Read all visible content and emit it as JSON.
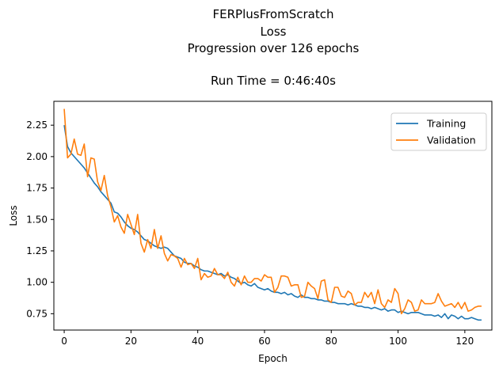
{
  "chart_data": {
    "type": "line",
    "title_lines": [
      "FERPlusFromScratch",
      "Loss",
      "Progression over 126 epochs",
      "",
      "Run Time = 0:46:40s"
    ],
    "xlabel": "Epoch",
    "ylabel": "Loss",
    "xlim": [
      -3.1,
      128.1
    ],
    "ylim": [
      0.62,
      2.44
    ],
    "xticks": [
      0,
      20,
      40,
      60,
      80,
      100,
      120
    ],
    "yticks": [
      0.75,
      1.0,
      1.25,
      1.5,
      1.75,
      2.0,
      2.25
    ],
    "ytick_labels": [
      "0.75",
      "1.00",
      "1.25",
      "1.50",
      "1.75",
      "2.00",
      "2.25"
    ],
    "legend_position": "top-right",
    "series": [
      {
        "name": "Training",
        "color": "#1f77b4",
        "values": [
          2.25,
          2.08,
          2.03,
          2.0,
          1.97,
          1.94,
          1.91,
          1.87,
          1.83,
          1.79,
          1.76,
          1.72,
          1.69,
          1.66,
          1.63,
          1.56,
          1.55,
          1.52,
          1.48,
          1.45,
          1.43,
          1.42,
          1.4,
          1.37,
          1.34,
          1.33,
          1.31,
          1.29,
          1.28,
          1.27,
          1.28,
          1.27,
          1.24,
          1.21,
          1.2,
          1.19,
          1.16,
          1.15,
          1.15,
          1.13,
          1.12,
          1.1,
          1.09,
          1.09,
          1.08,
          1.07,
          1.06,
          1.07,
          1.05,
          1.06,
          1.04,
          1.03,
          1.01,
          0.99,
          1.0,
          0.98,
          0.97,
          0.99,
          0.96,
          0.95,
          0.94,
          0.95,
          0.93,
          0.92,
          0.92,
          0.91,
          0.92,
          0.9,
          0.91,
          0.89,
          0.88,
          0.9,
          0.88,
          0.88,
          0.87,
          0.87,
          0.86,
          0.86,
          0.85,
          0.85,
          0.84,
          0.84,
          0.83,
          0.83,
          0.83,
          0.82,
          0.83,
          0.82,
          0.81,
          0.81,
          0.8,
          0.8,
          0.79,
          0.8,
          0.79,
          0.78,
          0.79,
          0.77,
          0.78,
          0.78,
          0.76,
          0.77,
          0.76,
          0.75,
          0.76,
          0.76,
          0.76,
          0.75,
          0.74,
          0.74,
          0.74,
          0.73,
          0.74,
          0.72,
          0.75,
          0.71,
          0.74,
          0.73,
          0.71,
          0.73,
          0.71,
          0.71,
          0.72,
          0.71,
          0.7,
          0.7
        ]
      },
      {
        "name": "Validation",
        "color": "#ff7f0e",
        "values": [
          2.38,
          1.99,
          2.02,
          2.14,
          2.02,
          2.01,
          2.1,
          1.84,
          1.99,
          1.98,
          1.8,
          1.73,
          1.85,
          1.69,
          1.6,
          1.48,
          1.53,
          1.44,
          1.39,
          1.54,
          1.46,
          1.38,
          1.54,
          1.31,
          1.24,
          1.34,
          1.27,
          1.42,
          1.27,
          1.37,
          1.23,
          1.17,
          1.22,
          1.21,
          1.19,
          1.12,
          1.19,
          1.14,
          1.15,
          1.11,
          1.19,
          1.02,
          1.07,
          1.04,
          1.05,
          1.11,
          1.06,
          1.06,
          1.03,
          1.08,
          1.0,
          0.97,
          1.04,
          0.98,
          1.05,
          1.0,
          1.0,
          1.03,
          1.03,
          1.01,
          1.06,
          1.04,
          1.04,
          0.92,
          0.96,
          1.05,
          1.05,
          1.04,
          0.97,
          0.98,
          0.98,
          0.88,
          0.89,
          1.0,
          0.97,
          0.95,
          0.87,
          1.01,
          1.02,
          0.86,
          0.84,
          0.96,
          0.96,
          0.89,
          0.88,
          0.93,
          0.91,
          0.82,
          0.84,
          0.84,
          0.92,
          0.88,
          0.92,
          0.83,
          0.94,
          0.83,
          0.8,
          0.86,
          0.84,
          0.95,
          0.91,
          0.75,
          0.79,
          0.86,
          0.84,
          0.77,
          0.78,
          0.86,
          0.83,
          0.83,
          0.83,
          0.84,
          0.91,
          0.85,
          0.81,
          0.82,
          0.83,
          0.8,
          0.84,
          0.79,
          0.84,
          0.77,
          0.78,
          0.8,
          0.81,
          0.81
        ]
      }
    ]
  }
}
